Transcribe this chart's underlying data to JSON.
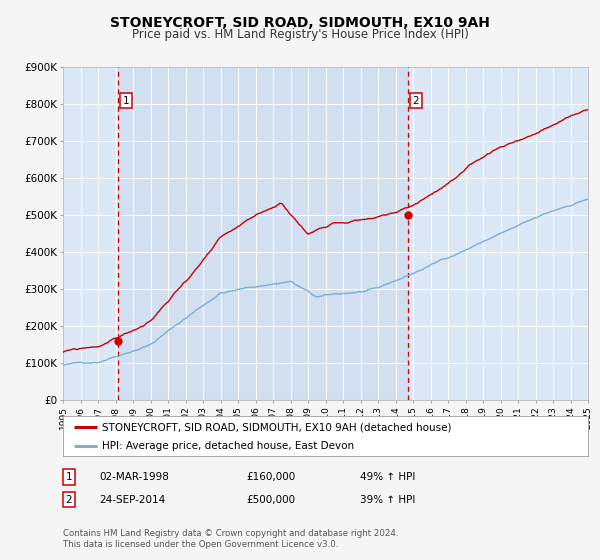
{
  "title": "STONEYCROFT, SID ROAD, SIDMOUTH, EX10 9AH",
  "subtitle": "Price paid vs. HM Land Registry's House Price Index (HPI)",
  "legend_line1": "STONEYCROFT, SID ROAD, SIDMOUTH, EX10 9AH (detached house)",
  "legend_line2": "HPI: Average price, detached house, East Devon",
  "table_rows": [
    {
      "num": "1",
      "date": "02-MAR-1998",
      "price": "£160,000",
      "hpi": "49% ↑ HPI"
    },
    {
      "num": "2",
      "date": "24-SEP-2014",
      "price": "£500,000",
      "hpi": "39% ↑ HPI"
    }
  ],
  "footnote1": "Contains HM Land Registry data © Crown copyright and database right 2024.",
  "footnote2": "This data is licensed under the Open Government Licence v3.0.",
  "sale1_year": 1998.17,
  "sale1_price": 160000,
  "sale2_year": 2014.73,
  "sale2_price": 500000,
  "background_color": "#f5f5f5",
  "plot_bg_color": "#dce8f5",
  "grid_color": "#ffffff",
  "red_line_color": "#cc0000",
  "blue_line_color": "#7bafd4",
  "dashed_line_color": "#cc0000",
  "ylim": [
    0,
    900000
  ],
  "yticks": [
    0,
    100000,
    200000,
    300000,
    400000,
    500000,
    600000,
    700000,
    800000,
    900000
  ],
  "ytick_labels": [
    "£0",
    "£100K",
    "£200K",
    "£300K",
    "£400K",
    "£500K",
    "£600K",
    "£700K",
    "£800K",
    "£900K"
  ],
  "year_start": 1995,
  "year_end": 2025
}
